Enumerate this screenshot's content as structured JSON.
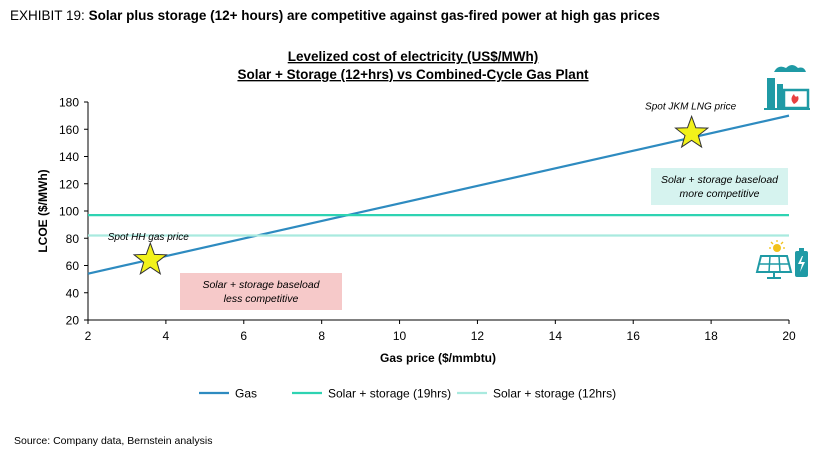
{
  "header": {
    "exhibit_label": "EXHIBIT 19:",
    "exhibit_title": "Solar plus storage (12+ hours) are competitive against gas-fired power at high gas prices"
  },
  "source": "Source: Company data, Bernstein analysis",
  "chart_data": {
    "type": "line",
    "title": "Levelized cost of electricity (US$/MWh)",
    "subtitle": "Solar + Storage (12+hrs) vs Combined-Cycle Gas Plant",
    "xlabel": "Gas price ($/mmbtu)",
    "ylabel": "LCOE ($/MWh)",
    "xlim": [
      2,
      20
    ],
    "ylim": [
      20,
      180
    ],
    "x_ticks": [
      2,
      4,
      6,
      8,
      10,
      12,
      14,
      16,
      18,
      20
    ],
    "y_ticks": [
      20,
      40,
      60,
      80,
      100,
      120,
      140,
      160,
      180
    ],
    "grid": false,
    "legend_position": "bottom",
    "series": [
      {
        "name": "Gas",
        "color": "#2e8bc0",
        "x": [
          2,
          20
        ],
        "y": [
          54,
          170
        ]
      },
      {
        "name": "Solar + storage (19hrs)",
        "color": "#2ed3b2",
        "x": [
          2,
          20
        ],
        "y": [
          97,
          97
        ]
      },
      {
        "name": "Solar + storage (12hrs)",
        "color": "#a9eadf",
        "x": [
          2,
          20
        ],
        "y": [
          82,
          82
        ]
      }
    ],
    "markers": [
      {
        "label": "Spot HH gas price",
        "x": 3.6,
        "y": 64,
        "color": "#f2f21a"
      },
      {
        "label": "Spot JKM LNG price",
        "x": 17.5,
        "y": 157,
        "color": "#f2f21a"
      }
    ],
    "annotations": [
      {
        "line1": "Solar + storage baseload",
        "line2": "more competitive",
        "bg": "#d6f3ef"
      },
      {
        "line1": "Solar + storage baseload",
        "line2": "less competitive",
        "bg": "#f6c9c9"
      }
    ]
  },
  "icons": [
    "gas-plant-icon",
    "solar-battery-icon"
  ]
}
